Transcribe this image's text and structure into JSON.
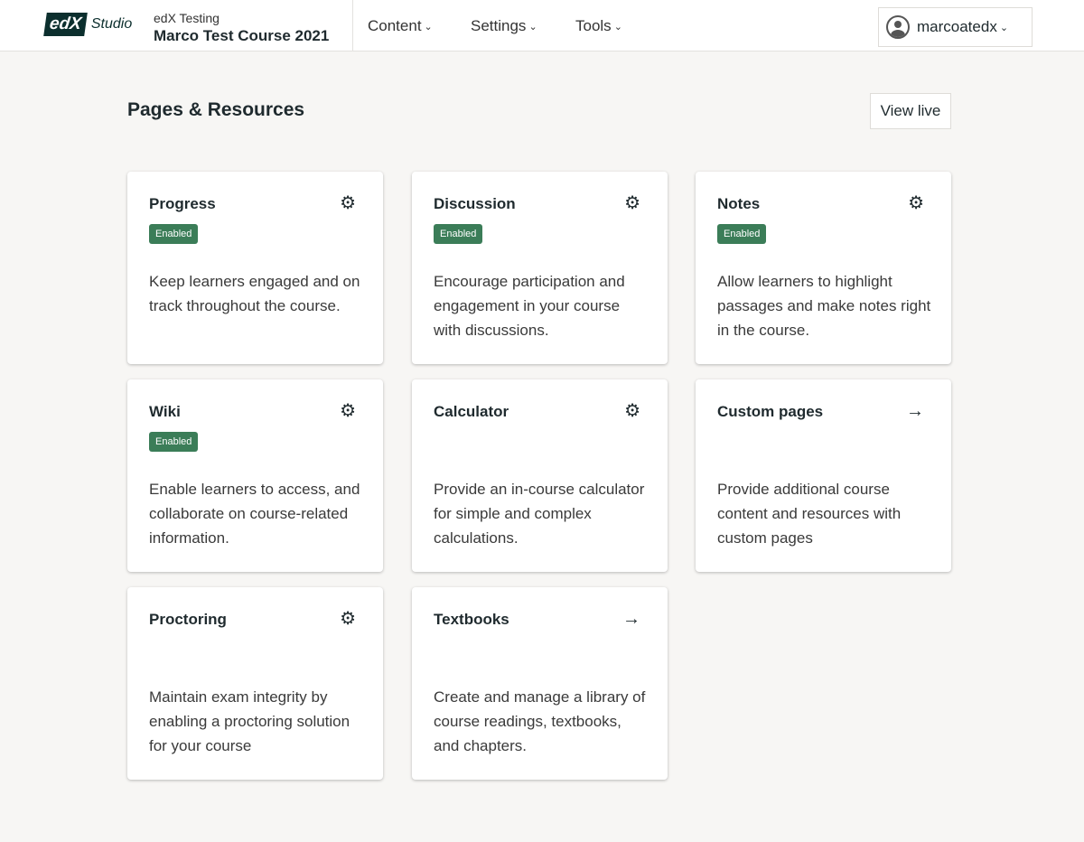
{
  "header": {
    "logo_text": "edX Studio",
    "org": "edX Testing",
    "course": "Marco Test Course 2021",
    "nav": [
      "Content",
      "Settings",
      "Tools"
    ],
    "user": "marcoatedx"
  },
  "page": {
    "title": "Pages & Resources",
    "view_live": "View live"
  },
  "cards": [
    {
      "title": "Progress",
      "badge": "Enabled",
      "desc": "Keep learners engaged and on track throughout the course.",
      "icon": "gear-icon"
    },
    {
      "title": "Discussion",
      "badge": "Enabled",
      "desc": "Encourage participation and engagement in your course with discussions.",
      "icon": "gear-icon"
    },
    {
      "title": "Notes",
      "badge": "Enabled",
      "desc": "Allow learners to highlight passages and make notes right in the course.",
      "icon": "gear-icon"
    },
    {
      "title": "Wiki",
      "badge": "Enabled",
      "desc": "Enable learners to access, and collaborate on course-related information.",
      "icon": "gear-icon"
    },
    {
      "title": "Calculator",
      "desc": "Provide an in-course calculator for simple and complex calculations.",
      "icon": "gear-icon"
    },
    {
      "title": "Custom pages",
      "desc": "Provide additional course content and resources with custom pages",
      "icon": "arrow-right-icon"
    },
    {
      "title": "Proctoring",
      "desc": "Maintain exam integrity by enabling a proctoring solution for your course",
      "icon": "gear-icon"
    },
    {
      "title": "Textbooks",
      "desc": "Create and manage a library of course readings, textbooks, and chapters.",
      "icon": "arrow-right-icon"
    }
  ]
}
